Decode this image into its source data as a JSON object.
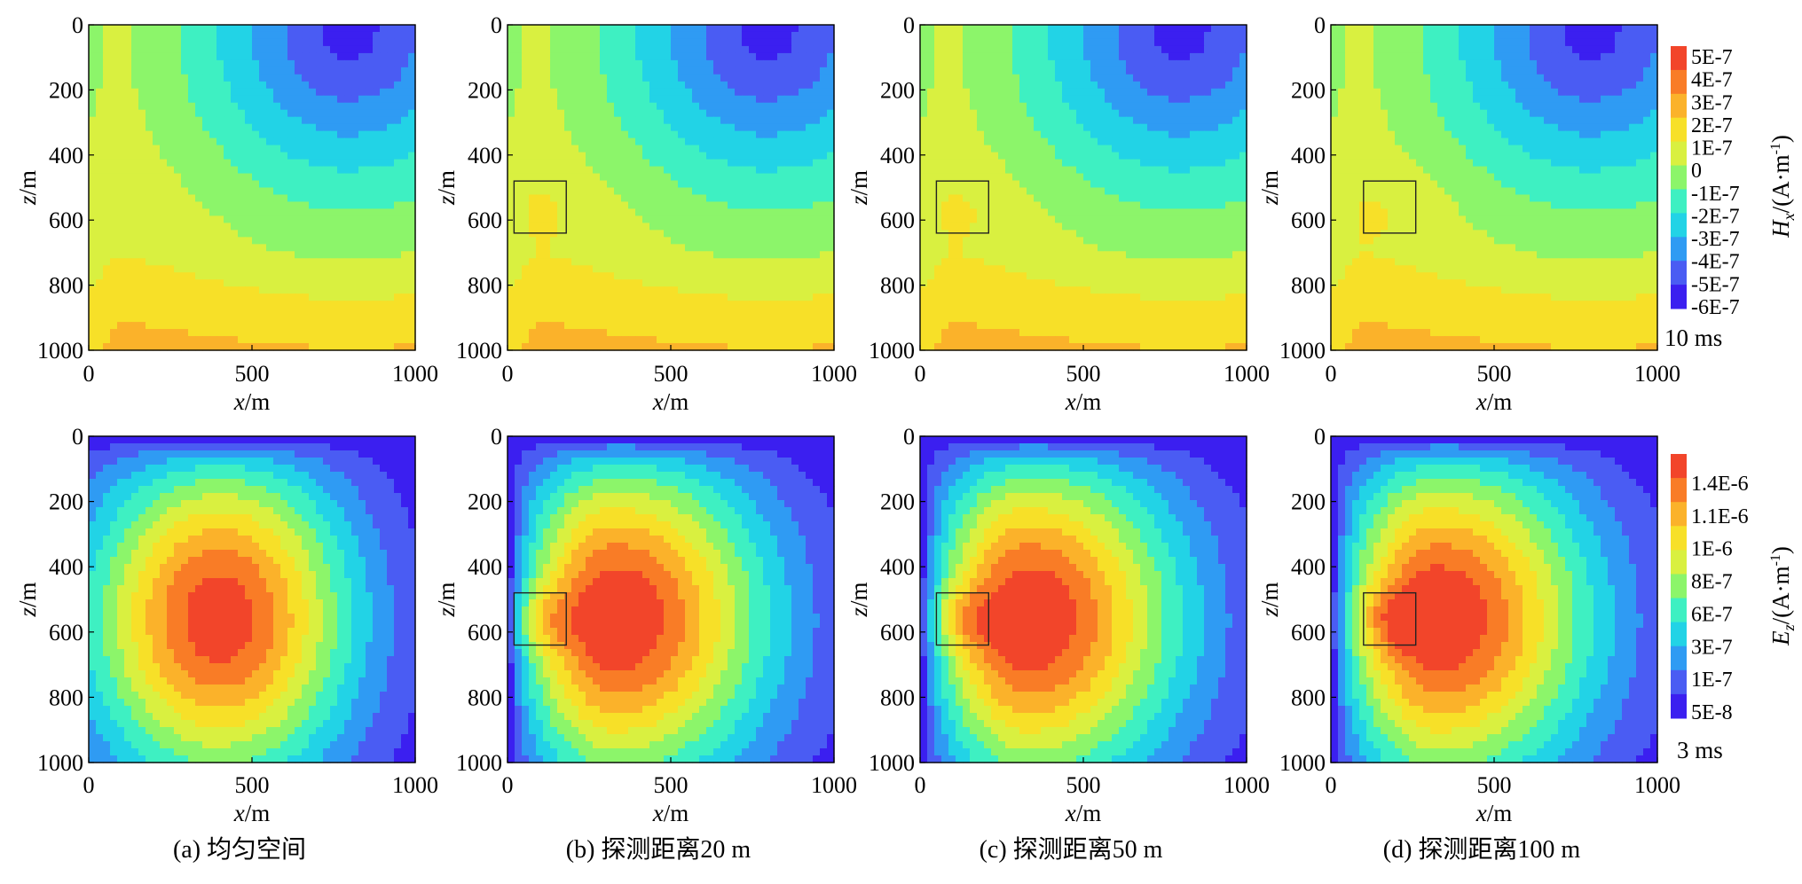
{
  "chart_data": {
    "type": "heatmap",
    "x_axis": {
      "label_var": "x",
      "label_unit": "/m",
      "ticks": [
        "0",
        "500",
        "1000"
      ],
      "range": [
        0,
        1000
      ]
    },
    "z_axis": {
      "label_var": "z",
      "label_unit": "/m",
      "ticks": [
        "0",
        "200",
        "400",
        "600",
        "800",
        "1000"
      ],
      "range": [
        0,
        1000
      ]
    },
    "rows": [
      {
        "component": "Hx",
        "time_label": "10 ms",
        "colorbar_label": {
          "var": "H",
          "sub": "x",
          "unit": "/(A·m",
          "sup": "-1",
          "close": ")"
        },
        "colorbar_ticks": [
          "5E-7",
          "4E-7",
          "3E-7",
          "2E-7",
          "1E-7",
          "0",
          "-1E-7",
          "-2E-7",
          "-3E-7",
          "-4E-7",
          "-5E-7",
          "-6E-7"
        ],
        "field_range": [
          -6e-07,
          5e-07
        ]
      },
      {
        "component": "Ez",
        "time_label": "3 ms",
        "colorbar_label": {
          "var": "E",
          "sub": "z",
          "unit": "/(A·m",
          "sup": "-1",
          "close": ")"
        },
        "colorbar_ticks": [
          "1.4E-6",
          "1.1E-6",
          "1E-6",
          "8E-7",
          "6E-7",
          "3E-7",
          "1E-7",
          "5E-8"
        ],
        "field_range": [
          5e-08,
          1.5e-06
        ]
      }
    ],
    "panels": [
      {
        "caption": "(a) 均匀空间",
        "anomaly_box": null
      },
      {
        "caption": "(b) 探测距离20 m",
        "anomaly_box": {
          "x": [
            20,
            180
          ],
          "z": [
            480,
            640
          ]
        }
      },
      {
        "caption": "(c) 探测距离50 m",
        "anomaly_box": {
          "x": [
            50,
            210
          ],
          "z": [
            480,
            640
          ]
        }
      },
      {
        "caption": "(d) 探测距离100 m",
        "anomaly_box": {
          "x": [
            100,
            260
          ],
          "z": [
            480,
            640
          ]
        }
      }
    ],
    "colormap": [
      "#3b1ff0",
      "#4a5cf3",
      "#2f9bf3",
      "#22d3e6",
      "#3ef0c2",
      "#8cf56a",
      "#d9f040",
      "#f7e028",
      "#fbb22a",
      "#f97c26",
      "#f2452a"
    ]
  }
}
